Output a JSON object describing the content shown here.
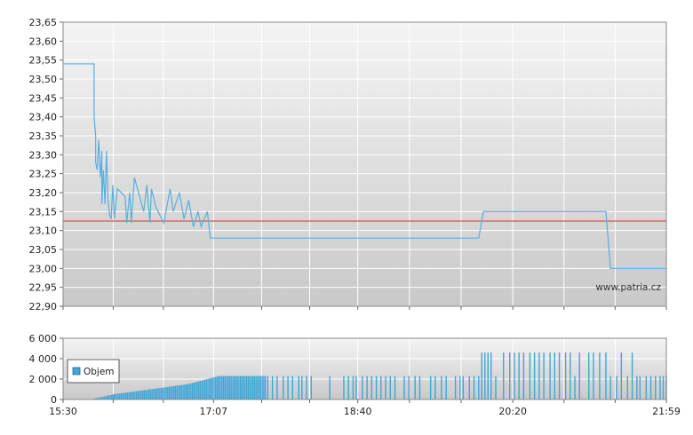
{
  "watermark": "www.patria.cz",
  "chart_data": [
    {
      "type": "line",
      "panel": "price",
      "ylim": [
        22.9,
        23.65
      ],
      "yticks": [
        "23,65",
        "23,60",
        "23,55",
        "23,50",
        "23,45",
        "23,40",
        "23,35",
        "23,30",
        "23,25",
        "23,20",
        "23,15",
        "23,10",
        "23,05",
        "23,00",
        "22,95",
        "22,90"
      ],
      "xlim_minutes": [
        930,
        1319
      ],
      "grid": true,
      "reference_line": {
        "value": 23.125,
        "color": "#e05050"
      },
      "line_color": "#5aaee0",
      "series": [
        {
          "points": [
            [
              "15:30",
              23.54
            ],
            [
              "15:50",
              23.54
            ],
            [
              "15:50",
              23.4
            ],
            [
              "15:51",
              23.35
            ],
            [
              "15:51",
              23.28
            ],
            [
              "15:52",
              23.26
            ],
            [
              "15:53",
              23.34
            ],
            [
              "15:54",
              23.24
            ],
            [
              "15:55",
              23.31
            ],
            [
              "15:55",
              23.17
            ],
            [
              "15:56",
              23.26
            ],
            [
              "15:57",
              23.17
            ],
            [
              "15:58",
              23.31
            ],
            [
              "15:59",
              23.18
            ],
            [
              "16:00",
              23.14
            ],
            [
              "16:01",
              23.13
            ],
            [
              "16:02",
              23.22
            ],
            [
              "16:03",
              23.13
            ],
            [
              "16:05",
              23.21
            ],
            [
              "16:10",
              23.19
            ],
            [
              "16:11",
              23.12
            ],
            [
              "16:13",
              23.2
            ],
            [
              "16:14",
              23.12
            ],
            [
              "16:16",
              23.24
            ],
            [
              "16:22",
              23.15
            ],
            [
              "16:24",
              23.22
            ],
            [
              "16:26",
              23.12
            ],
            [
              "16:27",
              23.21
            ],
            [
              "16:30",
              23.16
            ],
            [
              "16:35",
              23.12
            ],
            [
              "16:39",
              23.21
            ],
            [
              "16:41",
              23.15
            ],
            [
              "16:45",
              23.2
            ],
            [
              "16:48",
              23.13
            ],
            [
              "16:51",
              23.18
            ],
            [
              "16:54",
              23.11
            ],
            [
              "16:57",
              23.15
            ],
            [
              "16:59",
              23.11
            ],
            [
              "17:03",
              23.15
            ],
            [
              "17:05",
              23.08
            ],
            [
              "18:10",
              23.08
            ],
            [
              "19:58",
              23.08
            ],
            [
              "20:01",
              23.15
            ],
            [
              "21:20",
              23.15
            ],
            [
              "21:23",
              23.0
            ],
            [
              "21:59",
              23.0
            ]
          ]
        }
      ],
      "watermark_position": "bottom-right"
    },
    {
      "type": "bar",
      "panel": "volume",
      "ylim": [
        0,
        6000
      ],
      "yticks": [
        "6 000",
        "4 000",
        "2 000",
        "0"
      ],
      "xticks": [
        "15:30",
        "17:07",
        "18:40",
        "20:20",
        "21:59"
      ],
      "xlim_minutes": [
        930,
        1319
      ],
      "grid": true,
      "legend": {
        "label": "Objem",
        "placement": "left"
      },
      "bar_color": "#3ea6d8",
      "segments": [
        {
          "from": "15:50",
          "to": "16:02",
          "start": 100,
          "end": 500
        },
        {
          "from": "16:02",
          "to": "16:50",
          "start": 500,
          "end": 1500
        },
        {
          "from": "16:50",
          "to": "17:10",
          "start": 1500,
          "end": 2300
        },
        {
          "from": "17:10",
          "to": "17:40",
          "start": 2300,
          "end": 2300
        }
      ],
      "bars": [
        [
          "17:42",
          2300
        ],
        [
          "17:45",
          2300
        ],
        [
          "17:48",
          2300
        ],
        [
          "17:52",
          2300
        ],
        [
          "17:55",
          2300
        ],
        [
          "17:58",
          2300
        ],
        [
          "18:02",
          2300
        ],
        [
          "18:04",
          2300
        ],
        [
          "18:07",
          2300
        ],
        [
          "18:10",
          2300
        ],
        [
          "18:22",
          2300
        ],
        [
          "18:31",
          2300
        ],
        [
          "18:34",
          2300
        ],
        [
          "18:37",
          2300
        ],
        [
          "18:39",
          2300
        ],
        [
          "18:43",
          2300
        ],
        [
          "18:46",
          2300
        ],
        [
          "18:49",
          2300
        ],
        [
          "18:52",
          2300
        ],
        [
          "18:55",
          2300
        ],
        [
          "18:58",
          2300
        ],
        [
          "19:01",
          2300
        ],
        [
          "19:04",
          2300
        ],
        [
          "19:10",
          2300
        ],
        [
          "19:13",
          2300
        ],
        [
          "19:17",
          2300
        ],
        [
          "19:20",
          2300
        ],
        [
          "19:27",
          2300
        ],
        [
          "19:30",
          2300
        ],
        [
          "19:34",
          2300
        ],
        [
          "19:37",
          2300
        ],
        [
          "19:43",
          2300
        ],
        [
          "19:46",
          2300
        ],
        [
          "19:48",
          2300
        ],
        [
          "19:52",
          2300
        ],
        [
          "19:55",
          2300
        ],
        [
          "19:58",
          2300
        ],
        [
          "20:00",
          4600
        ],
        [
          "20:02",
          4600
        ],
        [
          "20:04",
          4600
        ],
        [
          "20:06",
          4600
        ],
        [
          "20:09",
          2300
        ],
        [
          "20:14",
          4600
        ],
        [
          "20:18",
          4600
        ],
        [
          "20:21",
          4600
        ],
        [
          "20:24",
          4600
        ],
        [
          "20:27",
          4600
        ],
        [
          "20:31",
          4600
        ],
        [
          "20:34",
          4600
        ],
        [
          "20:37",
          4600
        ],
        [
          "20:40",
          4600
        ],
        [
          "20:44",
          4600
        ],
        [
          "20:47",
          4600
        ],
        [
          "20:50",
          4600
        ],
        [
          "20:54",
          4600
        ],
        [
          "20:57",
          4600
        ],
        [
          "21:00",
          2300
        ],
        [
          "21:03",
          4600
        ],
        [
          "21:09",
          4600
        ],
        [
          "21:12",
          4600
        ],
        [
          "21:16",
          4600
        ],
        [
          "21:20",
          4600
        ],
        [
          "21:23",
          2300
        ],
        [
          "21:27",
          2300
        ],
        [
          "21:30",
          4600
        ],
        [
          "21:34",
          2300
        ],
        [
          "21:37",
          4600
        ],
        [
          "21:40",
          2300
        ],
        [
          "21:42",
          2300
        ],
        [
          "21:46",
          2300
        ],
        [
          "21:49",
          2300
        ],
        [
          "21:52",
          2300
        ],
        [
          "21:55",
          2300
        ],
        [
          "21:57",
          2300
        ],
        [
          "21:59",
          2300
        ]
      ]
    }
  ]
}
